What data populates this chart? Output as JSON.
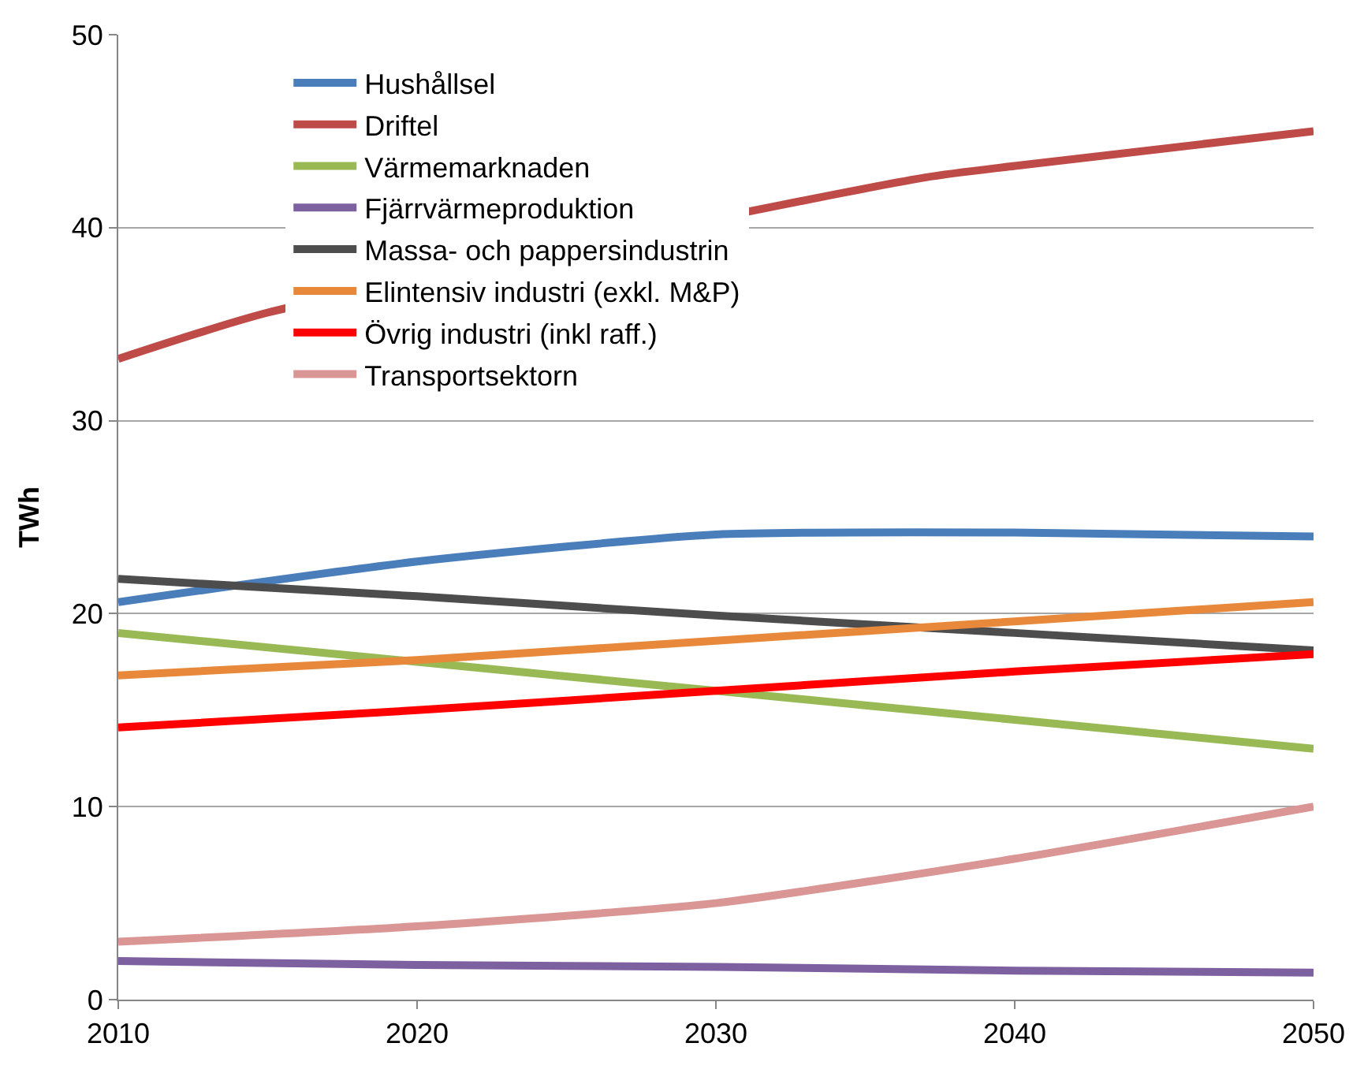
{
  "chart_data": {
    "type": "line",
    "ylabel": "TWh",
    "x": [
      2010,
      2020,
      2030,
      2040,
      2050
    ],
    "xlim": [
      2010,
      2050
    ],
    "xticks": [
      2010,
      2020,
      2030,
      2040,
      2050
    ],
    "ylim": [
      0,
      50
    ],
    "yticks": [
      0,
      10,
      20,
      30,
      40,
      50
    ],
    "grid": "y",
    "legend": "top left",
    "marker": "none",
    "line_style": "solid",
    "series": [
      {
        "name": "Hushållsel",
        "color": "#4a7ebb",
        "values": [
          20.6,
          22.7,
          24.1,
          24.2,
          24.0
        ]
      },
      {
        "name": "Driftel",
        "color": "#be4b48",
        "x": [
          2010,
          2015,
          2037,
          2040,
          2050
        ],
        "values": [
          33.2,
          35.6,
          42.6,
          43.2,
          45.0
        ]
      },
      {
        "name": "Värmemarknaden",
        "color": "#98b954",
        "values": [
          19.0,
          17.5,
          16.0,
          14.5,
          13.0
        ]
      },
      {
        "name": "Fjärrvärmeproduktion",
        "color": "#7d60a0",
        "values": [
          2.0,
          1.8,
          1.7,
          1.5,
          1.4
        ]
      },
      {
        "name": "Massa- och pappersindustrin",
        "color": "#4d4d4d",
        "values": [
          21.8,
          20.9,
          19.9,
          19.0,
          18.1
        ]
      },
      {
        "name": "Elintensiv industri (exkl. M&P)",
        "color": "#e8883a",
        "values": [
          16.8,
          17.6,
          18.6,
          19.6,
          20.6
        ]
      },
      {
        "name": "Övrig industri (inkl raff.)",
        "color": "#ff0000",
        "values": [
          14.1,
          15.0,
          16.0,
          17.0,
          17.9
        ]
      },
      {
        "name": "Transportsektorn",
        "color": "#d99694",
        "values": [
          3.0,
          3.8,
          5.0,
          7.3,
          10.0
        ]
      }
    ]
  }
}
